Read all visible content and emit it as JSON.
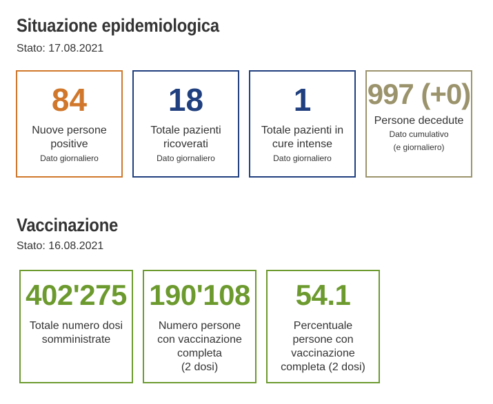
{
  "colors": {
    "orange": "#d0772b",
    "blue": "#1f3f7e",
    "khaki": "#9b936c",
    "green": "#6c9a2e"
  },
  "epidemiology": {
    "title": "Situazione epidemiologica",
    "date": "Stato: 17.08.2021",
    "cards": [
      {
        "value": "84",
        "label": "Nuove persone\npositive",
        "note": "Dato giornaliero"
      },
      {
        "value": "18",
        "label": "Totale pazienti\nricoverati",
        "note": "Dato giornaliero"
      },
      {
        "value": "1",
        "label": "Totale pazienti in\ncure intense",
        "note": "Dato giornaliero"
      },
      {
        "value": "997 (+0)",
        "label": "Persone decedute",
        "note": "Dato cumulativo\n(e giornaliero)"
      }
    ]
  },
  "vaccination": {
    "title": "Vaccinazione",
    "date": "Stato: 16.08.2021",
    "cards": [
      {
        "value": "402'275",
        "label": "Totale numero dosi\nsomministrate"
      },
      {
        "value": "190'108",
        "label": "Numero persone\ncon vaccinazione\ncompleta\n(2 dosi)"
      },
      {
        "value": "54.1",
        "label": "Percentuale\npersone con\nvaccinazione\ncompleta (2 dosi)"
      }
    ]
  }
}
